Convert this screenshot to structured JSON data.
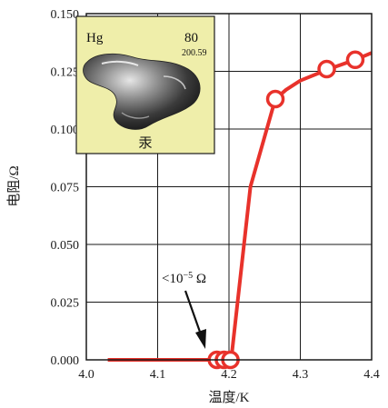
{
  "chart_data": {
    "type": "line",
    "xlabel": "温度/K",
    "ylabel": "电阻/Ω",
    "xlim": [
      4.0,
      4.4
    ],
    "ylim": [
      0.0,
      0.15
    ],
    "x_ticks": [
      "4.0",
      "4.1",
      "4.2",
      "4.3",
      "4.4"
    ],
    "y_ticks": [
      "0.000",
      "0.025",
      "0.050",
      "0.075",
      "0.100",
      "0.125",
      "0.150"
    ],
    "grid": true,
    "series": [
      {
        "color": "#e8322b",
        "x": [
          4.03,
          4.18,
          4.19,
          4.2,
          4.203,
          4.23,
          4.265,
          4.28,
          4.3,
          4.34,
          4.377,
          4.4
        ],
        "y": [
          0.0,
          0.0,
          0.0,
          0.0,
          0.0,
          0.075,
          0.113,
          0.117,
          0.121,
          0.126,
          0.13,
          0.133
        ]
      }
    ],
    "markers": {
      "x": [
        4.183,
        4.193,
        4.202,
        4.265,
        4.337,
        4.377
      ],
      "y": [
        0.0,
        0.0,
        0.0,
        0.113,
        0.126,
        0.13
      ]
    },
    "annotation": {
      "text_base": "<10",
      "text_exp": "−5",
      "text_unit": " Ω",
      "x": 4.193,
      "y": 0.0
    }
  },
  "inset": {
    "symbol": "Hg",
    "number": "80",
    "mass": "200.59",
    "name": "汞",
    "bg_color": "#efeeaa"
  }
}
